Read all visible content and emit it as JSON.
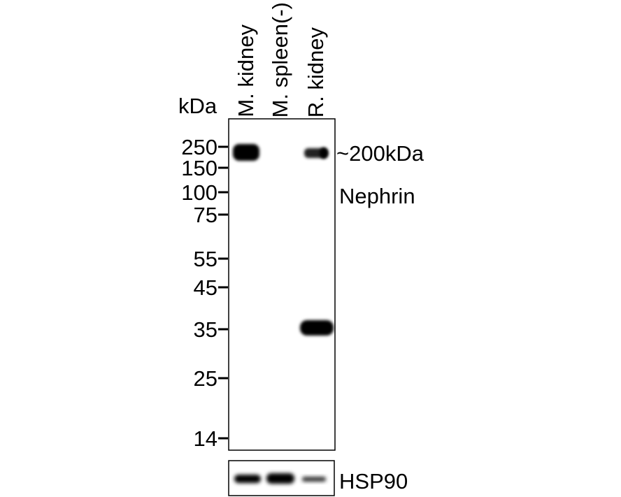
{
  "unit_label": "kDa",
  "lanes": [
    "M. kidney",
    "M. spleen(-)",
    "R. kidney"
  ],
  "markers": [
    "250",
    "150",
    "100",
    "75",
    "55",
    "45",
    "35",
    "25",
    "14"
  ],
  "target": {
    "size_label": "~200kDa",
    "name": "Nephrin"
  },
  "loading_control": "HSP90"
}
